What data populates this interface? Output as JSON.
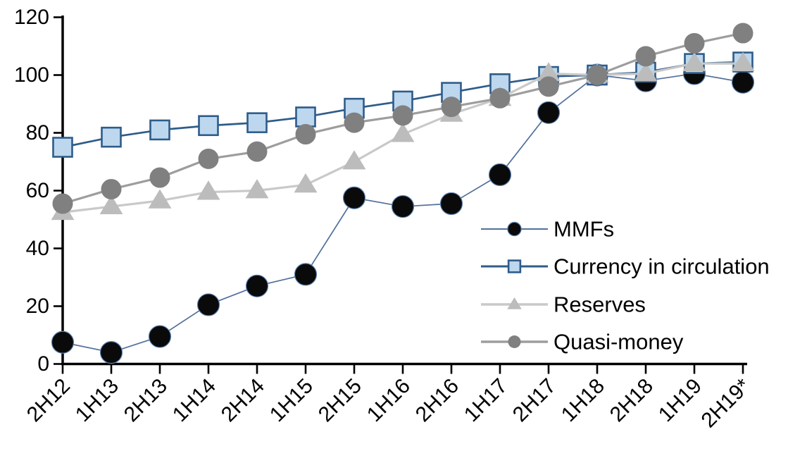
{
  "chart_data": {
    "type": "line",
    "title": "",
    "xlabel": "",
    "ylabel": "",
    "grid": false,
    "legend_position": "middle-right",
    "background": "#ffffff",
    "text_color": "#000000",
    "axis_color": "#000000",
    "categories": [
      "2H12",
      "1H13",
      "2H13",
      "1H14",
      "2H14",
      "1H15",
      "2H15",
      "1H16",
      "2H16",
      "1H17",
      "2H17",
      "1H18",
      "2H18",
      "1H19",
      "2H19*"
    ],
    "y_axis": {
      "min": 0,
      "max": 120,
      "step": 20,
      "ticks": [
        0,
        20,
        40,
        60,
        80,
        100,
        120
      ]
    },
    "series": [
      {
        "name": "MMFs",
        "marker": "circle",
        "values": [
          7.5,
          4,
          9.5,
          20.5,
          27,
          31,
          57.5,
          54.5,
          55.5,
          65.5,
          87,
          100,
          98,
          100.5,
          97.5
        ],
        "line_color": "#52709b",
        "line_width": 1.7,
        "marker_fill": "#0a0a0a",
        "marker_stroke": "#5c83b4",
        "marker_stroke_width": 1.2,
        "marker_size": 31
      },
      {
        "name": "Currency in circulation",
        "marker": "square",
        "values": [
          75,
          78.5,
          81,
          82.5,
          83.5,
          85.5,
          88.5,
          91,
          94,
          97,
          99.5,
          100,
          101,
          104,
          104.5
        ],
        "line_color": "#2e5c8a",
        "line_width": 2.7,
        "marker_fill": "#bdd7ee",
        "marker_stroke": "#2e5c8a",
        "marker_stroke_width": 2.6,
        "marker_size": 27
      },
      {
        "name": "Reserves",
        "marker": "triangle",
        "values": [
          52.5,
          54.5,
          56.5,
          59.5,
          60,
          62,
          70,
          79.5,
          86.5,
          92,
          100.5,
          100,
          100.5,
          104,
          104
        ],
        "line_color": "#c9c9c9",
        "line_width": 3.2,
        "marker_fill": "#bcbcbc",
        "marker_stroke": "#bcbcbc",
        "marker_stroke_width": 0,
        "marker_size": 31
      },
      {
        "name": "Quasi-money",
        "marker": "circle",
        "values": [
          55.5,
          60.5,
          64.5,
          71,
          73.5,
          79.5,
          83.5,
          86,
          89,
          92,
          96,
          100,
          106.5,
          111,
          114.5
        ],
        "line_color": "#9d9d9d",
        "line_width": 3.2,
        "marker_fill": "#808080",
        "marker_stroke": "#808080",
        "marker_stroke_width": 0,
        "marker_size": 29
      }
    ]
  }
}
